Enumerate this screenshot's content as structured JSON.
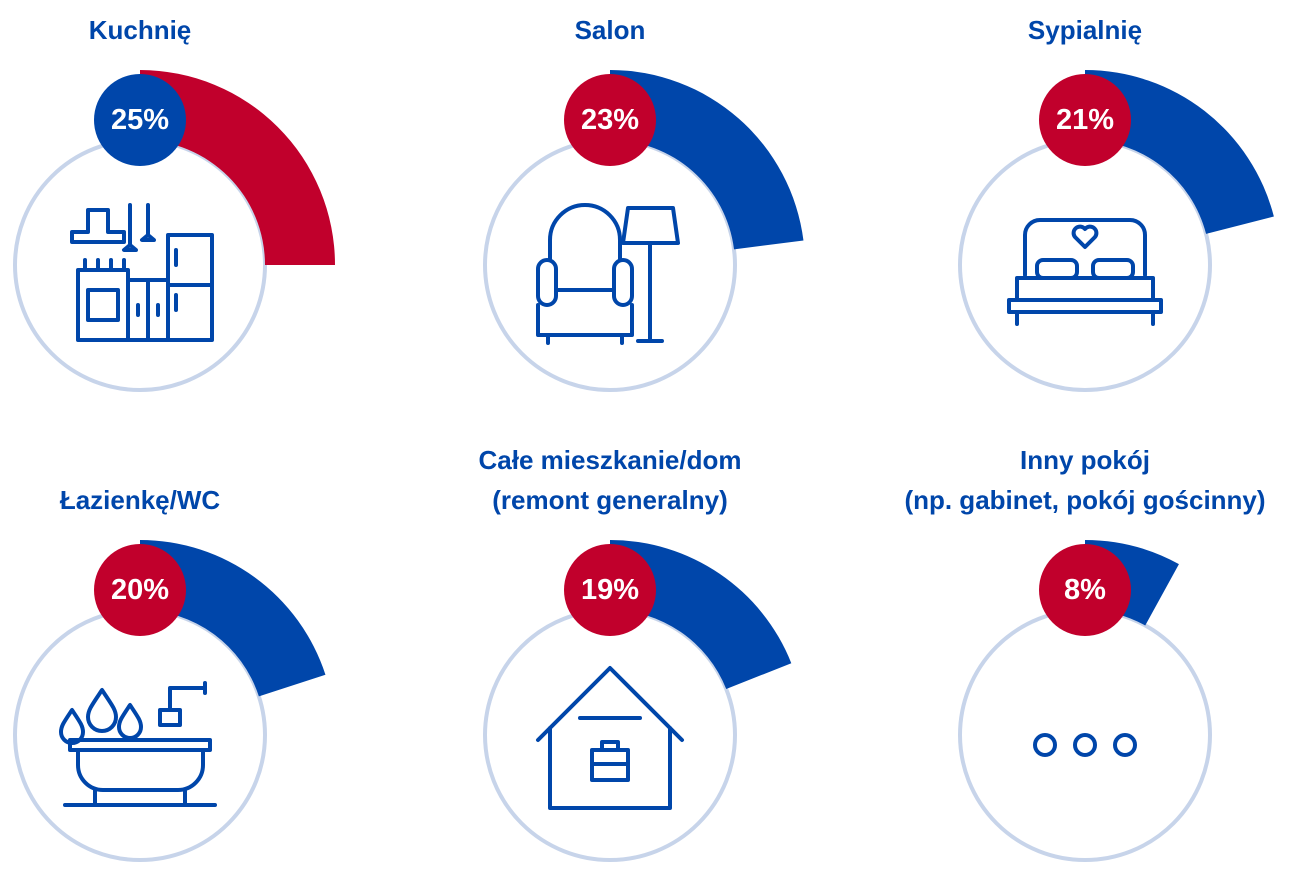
{
  "chart_data": {
    "type": "radial",
    "categories": [
      "Kuchnię",
      "Salon",
      "Sypialnię",
      "Łazienkę/WC",
      "Całe mieszkanie/dom\n(remont generalny)",
      "Inny pokój\n(np. gabinet, pokój gościnny)"
    ],
    "values": [
      25,
      23,
      21,
      20,
      19,
      8
    ],
    "value_labels": [
      "25%",
      "23%",
      "21%",
      "20%",
      "19%",
      "8%"
    ],
    "colors": [
      "#c1002c",
      "#0046aa",
      "#0046aa",
      "#0046aa",
      "#0046aa",
      "#0046aa"
    ],
    "badge_colors": [
      "#0046aa",
      "#c1002c",
      "#c1002c",
      "#c1002c",
      "#c1002c",
      "#c1002c"
    ]
  }
}
